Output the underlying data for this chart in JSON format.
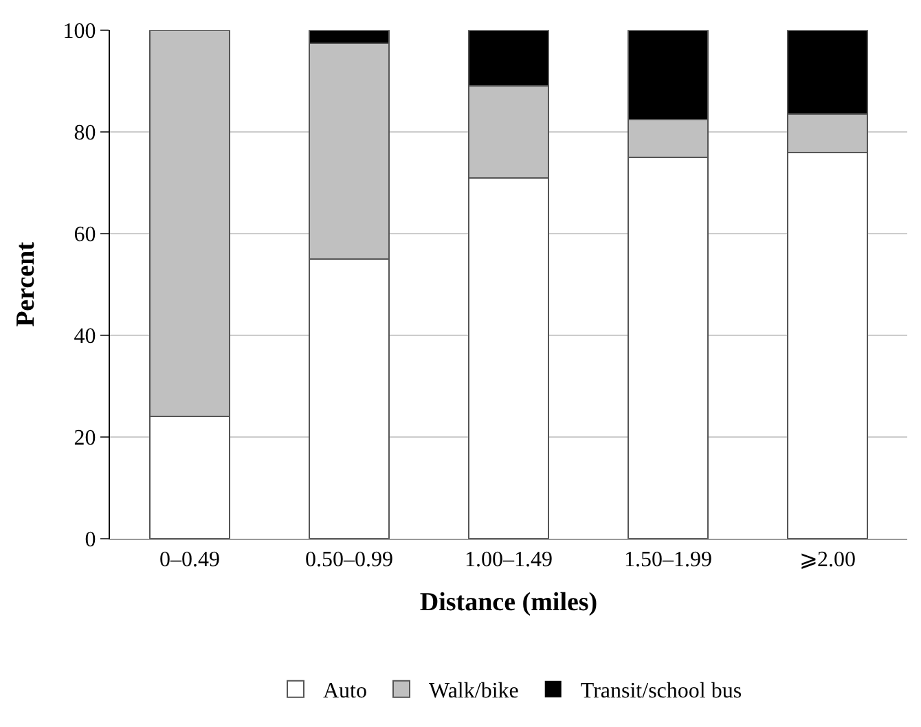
{
  "chart_data": {
    "type": "bar",
    "stacked": true,
    "xlabel": "Distance (miles)",
    "ylabel": "Percent",
    "categories": [
      "0–0.49",
      "0.50–0.99",
      "1.00–1.49",
      "1.50–1.99",
      "⩾2.00"
    ],
    "series": [
      {
        "name": "Auto",
        "color": "#ffffff",
        "values": [
          24,
          55,
          71,
          75,
          76
        ]
      },
      {
        "name": "Walk/bike",
        "color": "#c0c0c0",
        "values": [
          76,
          42.5,
          18,
          7.5,
          7.5
        ]
      },
      {
        "name": "Transit/school bus",
        "color": "#000000",
        "values": [
          0,
          2.5,
          11,
          17.5,
          16.5
        ]
      }
    ],
    "ylim": [
      0,
      100
    ],
    "yticks": [
      0,
      20,
      40,
      60,
      80,
      100
    ],
    "grid": "y",
    "legend": "bottom"
  }
}
